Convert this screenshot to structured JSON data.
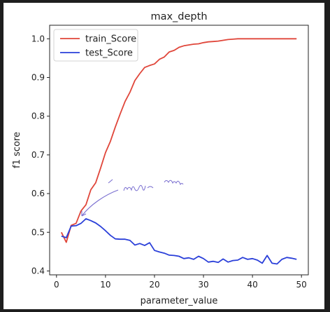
{
  "chart_data": {
    "type": "line",
    "title": "max_depth",
    "xlabel": "parameter_value",
    "ylabel": "f1 score",
    "xlim": [
      -1.4,
      51.4
    ],
    "ylim": [
      0.39,
      1.035
    ],
    "xticks": [
      0,
      10,
      20,
      30,
      40,
      50
    ],
    "yticks": [
      0.4,
      0.5,
      0.6,
      0.7,
      0.8,
      0.9,
      1.0
    ],
    "ytick_labels": [
      "0.4",
      "0.5",
      "0.6",
      "0.7",
      "0.8",
      "0.9",
      "1.0"
    ],
    "grid": false,
    "legend": "top-left",
    "x": [
      1,
      2,
      3,
      4,
      5,
      6,
      7,
      8,
      9,
      10,
      11,
      12,
      13,
      14,
      15,
      16,
      17,
      18,
      19,
      20,
      21,
      22,
      23,
      24,
      25,
      26,
      27,
      28,
      29,
      30,
      31,
      32,
      33,
      34,
      35,
      36,
      37,
      38,
      39,
      40,
      41,
      42,
      43,
      44,
      45,
      46,
      47,
      48,
      49
    ],
    "series": [
      {
        "name": "train_Score",
        "color": "#e0463a",
        "values": [
          0.5,
          0.474,
          0.518,
          0.523,
          0.555,
          0.571,
          0.61,
          0.628,
          0.666,
          0.706,
          0.735,
          0.772,
          0.806,
          0.838,
          0.862,
          0.892,
          0.91,
          0.926,
          0.931,
          0.935,
          0.947,
          0.953,
          0.966,
          0.97,
          0.978,
          0.982,
          0.984,
          0.986,
          0.987,
          0.99,
          0.992,
          0.993,
          0.994,
          0.996,
          0.998,
          0.999,
          1.0,
          1.0,
          1.0,
          1.0,
          1.0,
          1.0,
          1.0,
          1.0,
          1.0,
          1.0,
          1.0,
          1.0,
          1.0
        ]
      },
      {
        "name": "test_Score",
        "color": "#2a3fd9",
        "values": [
          0.49,
          0.486,
          0.516,
          0.517,
          0.523,
          0.535,
          0.53,
          0.524,
          0.515,
          0.504,
          0.492,
          0.483,
          0.482,
          0.482,
          0.479,
          0.467,
          0.471,
          0.466,
          0.473,
          0.453,
          0.449,
          0.446,
          0.441,
          0.44,
          0.438,
          0.432,
          0.434,
          0.43,
          0.438,
          0.432,
          0.423,
          0.425,
          0.422,
          0.431,
          0.423,
          0.427,
          0.428,
          0.435,
          0.43,
          0.432,
          0.428,
          0.42,
          0.44,
          0.42,
          0.418,
          0.43,
          0.435,
          0.433,
          0.43
        ]
      }
    ]
  }
}
